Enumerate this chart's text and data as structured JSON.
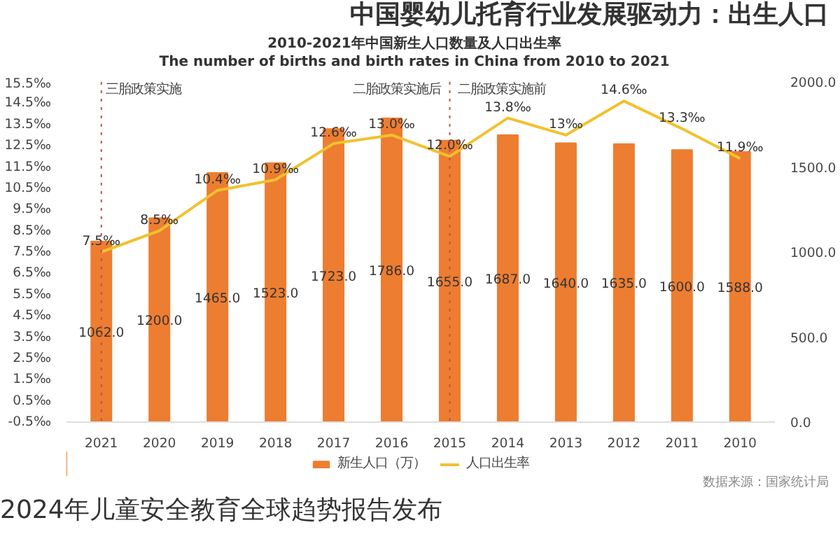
{
  "chart_data": {
    "type": "bar",
    "title": "中国婴幼儿托育行业发展驱动力：出生人口",
    "subtitle": "2010-2021年中国新生人口数量及人口出生率\nThe number of births and birth rates in China from 2010 to 2021",
    "categories": [
      "2021",
      "2020",
      "2019",
      "2018",
      "2017",
      "2016",
      "2015",
      "2014",
      "2013",
      "2012",
      "2011",
      "2010"
    ],
    "series": [
      {
        "name": "新生人口（万）",
        "axis": "y2",
        "color": "#ed7d31",
        "values": [
          1062,
          1200,
          1465,
          1523,
          1723,
          1786,
          1655,
          1687,
          1640,
          1635,
          1600,
          1588
        ],
        "value_labels": [
          "1062.0",
          "1200.0",
          "1465.0",
          "1523.0",
          "1723.0",
          "1786.0",
          "1655.0",
          "1687.0",
          "1640.0",
          "1635.0",
          "1600.0",
          "1588.0"
        ]
      },
      {
        "name": "人口出生率",
        "type": "line",
        "axis": "y",
        "color": "#f2c12e",
        "values": [
          7.5,
          8.5,
          10.4,
          10.9,
          12.6,
          13.0,
          12.0,
          13.8,
          13,
          14.6,
          13.3,
          11.9
        ],
        "value_labels": [
          "7.5‰",
          "8.5‰",
          "10.4‰",
          "10.9‰",
          "12.6‰",
          "13.0‰",
          "12.0‰",
          "13.8‰",
          "13‰",
          "14.6‰",
          "13.3‰",
          "11.9‰"
        ]
      }
    ],
    "ylim": [
      -0.5,
      15.5
    ],
    "yticks": [
      {
        "value": -0.5,
        "label": "-0.5‰"
      },
      {
        "value": 0.5,
        "label": "0.5‰"
      },
      {
        "value": 1.5,
        "label": "1.5‰"
      },
      {
        "value": 2.5,
        "label": "2.5‰"
      },
      {
        "value": 3.5,
        "label": "3.5‰"
      },
      {
        "value": 4.5,
        "label": "4.5‰"
      },
      {
        "value": 5.5,
        "label": "5.5‰"
      },
      {
        "value": 6.5,
        "label": "6.5‰"
      },
      {
        "value": 7.5,
        "label": "7.5‰"
      },
      {
        "value": 8.5,
        "label": "8.5‰"
      },
      {
        "value": 9.5,
        "label": "9.5‰"
      },
      {
        "value": 10.5,
        "label": "10.5‰"
      },
      {
        "value": 11.5,
        "label": "11.5‰"
      },
      {
        "value": 12.5,
        "label": "12.5‰"
      },
      {
        "value": 13.5,
        "label": "13.5‰"
      },
      {
        "value": 14.5,
        "label": "14.5‰"
      },
      {
        "value": 15.5,
        "label": "15.5‰"
      }
    ],
    "y2lim": [
      0,
      2000
    ],
    "y2ticks": [
      {
        "value": 0,
        "label": "0.0"
      },
      {
        "value": 500,
        "label": "500.0"
      },
      {
        "value": 1000,
        "label": "1000.0"
      },
      {
        "value": 1500,
        "label": "1500.0"
      },
      {
        "value": 2000,
        "label": "2000.0"
      }
    ],
    "ref_lines": [
      {
        "axis": "x",
        "value": "2021",
        "label": "三胎政策实施",
        "color": "#c0504d",
        "line_style": "dotted"
      },
      {
        "axis": "x",
        "value": "2015",
        "label": null,
        "color": "#c0504d",
        "line_style": "dotted"
      }
    ],
    "annotations": [
      "二胎政策实施后",
      "二胎政策实施前",
      "数据来源：国家统计局",
      "2024年儿童安全教育全球趋势报告发布"
    ],
    "legend": "bottom"
  }
}
